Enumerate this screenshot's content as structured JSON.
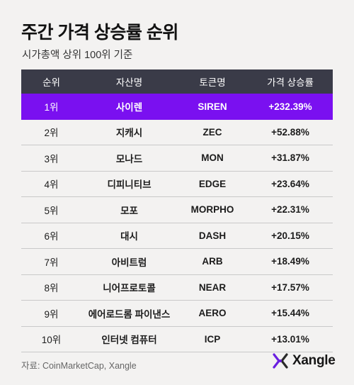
{
  "title": "주간 가격 상승률 순위",
  "subtitle": "시가총액 상위 100위 기준",
  "table": {
    "headers": [
      "순위",
      "자산명",
      "토큰명",
      "가격 상승률"
    ],
    "rows": [
      {
        "rank": "1위",
        "name": "사이렌",
        "token": "SIREN",
        "gain": "+232.39%"
      },
      {
        "rank": "2위",
        "name": "지캐시",
        "token": "ZEC",
        "gain": "+52.88%"
      },
      {
        "rank": "3위",
        "name": "모나드",
        "token": "MON",
        "gain": "+31.87%"
      },
      {
        "rank": "4위",
        "name": "디피니티브",
        "token": "EDGE",
        "gain": "+23.64%"
      },
      {
        "rank": "5위",
        "name": "모포",
        "token": "MORPHO",
        "gain": "+22.31%"
      },
      {
        "rank": "6위",
        "name": "대시",
        "token": "DASH",
        "gain": "+20.15%"
      },
      {
        "rank": "7위",
        "name": "아비트럼",
        "token": "ARB",
        "gain": "+18.49%"
      },
      {
        "rank": "8위",
        "name": "니어프로토콜",
        "token": "NEAR",
        "gain": "+17.57%"
      },
      {
        "rank": "9위",
        "name": "에어로드롬 파이낸스",
        "token": "AERO",
        "gain": "+15.44%"
      },
      {
        "rank": "10위",
        "name": "인터넷 컴퓨터",
        "token": "ICP",
        "gain": "+13.01%"
      }
    ]
  },
  "source": "자료: CoinMarketCap, Xangle",
  "brand": {
    "name": "Xangle",
    "icon": "xangle-x-logo-icon"
  },
  "colors": {
    "highlight": "#7a10f0",
    "header": "#3a3b48",
    "background": "#f3f2f1"
  }
}
